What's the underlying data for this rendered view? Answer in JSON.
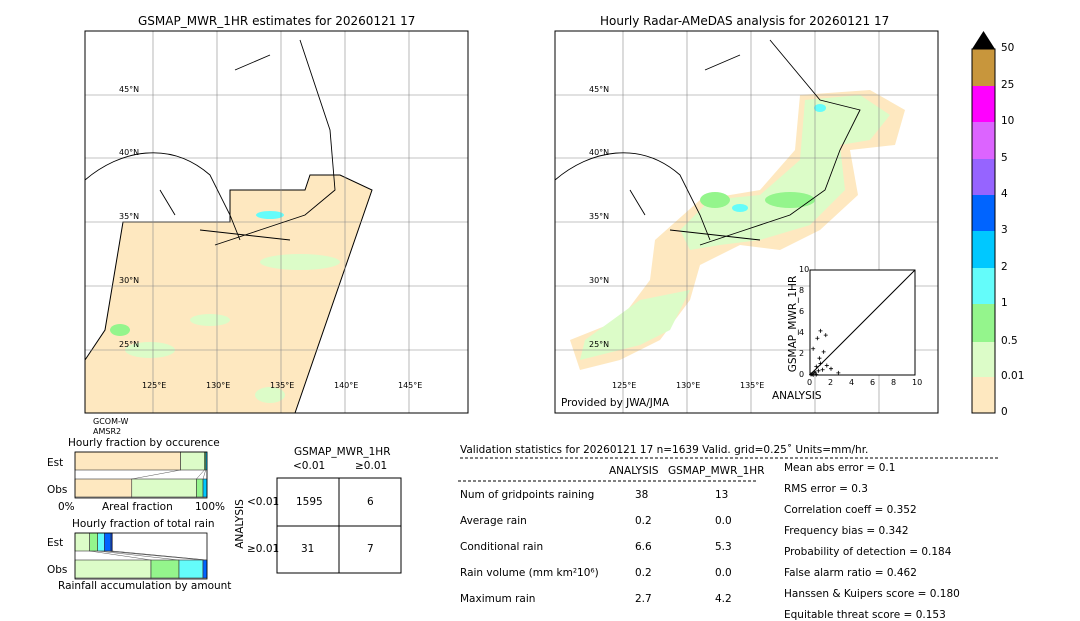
{
  "left_map": {
    "title": "GSMAP_MWR_1HR estimates for 20260121 17",
    "sensor_line1": "GCOM-W",
    "sensor_line2": "AMSR2",
    "lat_labels": [
      "45°N",
      "40°N",
      "35°N",
      "30°N",
      "25°N"
    ],
    "lon_labels": [
      "125°E",
      "130°E",
      "135°E",
      "140°E",
      "145°E"
    ]
  },
  "right_map": {
    "title": "Hourly Radar-AMeDAS analysis for 20260121 17",
    "credit": "Provided by JWA/JMA",
    "lat_labels": [
      "45°N",
      "40°N",
      "35°N",
      "30°N",
      "25°N"
    ],
    "lon_labels": [
      "125°E",
      "130°E",
      "135°E"
    ]
  },
  "colorbar": {
    "labels": [
      "0",
      "0.01",
      "0.5",
      "1",
      "2",
      "3",
      "4",
      "5",
      "10",
      "25",
      "50"
    ],
    "colors": [
      "#fee8c0",
      "#dcfcc8",
      "#94f58c",
      "#64fcfa",
      "#00c8ff",
      "#0064ff",
      "#9664ff",
      "#dc64ff",
      "#ff00ff",
      "#c8963c"
    ],
    "extend_color": "#000000"
  },
  "chart_data": [
    {
      "type": "scatter",
      "xlabel": "ANALYSIS",
      "ylabel": "GSMAP_MWR_1HR",
      "xlim": [
        0,
        10
      ],
      "ylim": [
        0,
        10
      ],
      "xticks": [
        "0",
        "2",
        "4",
        "6",
        "8",
        "10"
      ],
      "yticks": [
        "0",
        "2",
        "4",
        "6",
        "8",
        "10"
      ],
      "points": [
        [
          0.2,
          0.1
        ],
        [
          0.4,
          0.3
        ],
        [
          0.5,
          0.2
        ],
        [
          0.6,
          0.8
        ],
        [
          0.8,
          0.4
        ],
        [
          1.0,
          1.1
        ],
        [
          1.2,
          0.5
        ],
        [
          0.3,
          2.5
        ],
        [
          0.7,
          3.5
        ],
        [
          1.0,
          4.2
        ],
        [
          1.5,
          3.8
        ],
        [
          1.3,
          2.2
        ],
        [
          0.9,
          1.6
        ],
        [
          1.6,
          0.9
        ],
        [
          2.0,
          0.6
        ],
        [
          0.1,
          0.05
        ],
        [
          0.3,
          0.0
        ],
        [
          0.6,
          0.05
        ],
        [
          2.7,
          0.2
        ]
      ]
    },
    {
      "type": "bar",
      "title": "Hourly fraction by occurence",
      "xlabel": "Areal fraction",
      "x_left": "0%",
      "x_right": "100%",
      "categories": [
        "Est",
        "Obs"
      ],
      "series": [
        {
          "color": "#fee8c0",
          "values": [
            80,
            43
          ]
        },
        {
          "color": "#dcfcc8",
          "values": [
            18,
            49
          ]
        },
        {
          "color": "#94f58c",
          "values": [
            1,
            5
          ]
        },
        {
          "color": "#00c8ff",
          "values": [
            1,
            3
          ]
        }
      ]
    },
    {
      "type": "bar",
      "title": "Hourly fraction of total rain",
      "xlabel": "Rainfall accumulation by amount",
      "categories": [
        "Est",
        "Obs"
      ],
      "series": [
        {
          "color": "#dcfcc8",
          "values": [
            11,
            57
          ]
        },
        {
          "color": "#94f58c",
          "values": [
            6,
            21
          ]
        },
        {
          "color": "#64fcfa",
          "values": [
            5,
            18
          ]
        },
        {
          "color": "#0064ff",
          "values": [
            5,
            3
          ]
        },
        {
          "color": "#0030c0",
          "values": [
            1,
            0
          ]
        }
      ]
    },
    {
      "type": "table",
      "title": "GSMAP_MWR_1HR",
      "col_headers": [
        "<0.01",
        "≥0.01"
      ],
      "row_title": "ANALYSIS",
      "row_headers": [
        "<0.01",
        "≥0.01"
      ],
      "cells": [
        [
          "1595",
          "6"
        ],
        [
          "31",
          "7"
        ]
      ]
    }
  ],
  "stats": {
    "header": "Validation statistics for 20260121 17  n=1639 Valid. grid=0.25˚ Units=mm/hr.",
    "col1": "ANALYSIS",
    "col2": "GSMAP_MWR_1HR",
    "rows": [
      {
        "label": "Num of gridpoints raining",
        "a": "38",
        "b": "13"
      },
      {
        "label": "Average rain",
        "a": "0.2",
        "b": "0.0"
      },
      {
        "label": "Conditional rain",
        "a": "6.6",
        "b": "5.3"
      },
      {
        "label": "Rain volume (mm km²10⁶)",
        "a": "0.2",
        "b": "0.0"
      },
      {
        "label": "Maximum rain",
        "a": "2.7",
        "b": "4.2"
      }
    ],
    "scores": [
      "Mean abs error =    0.1",
      "RMS error =    0.3",
      "Correlation coeff =  0.352",
      "Frequency bias =  0.342",
      "Probability of detection =  0.184",
      "False alarm ratio =  0.462",
      "Hanssen & Kuipers score =  0.180",
      "Equitable threat score =  0.153"
    ]
  }
}
